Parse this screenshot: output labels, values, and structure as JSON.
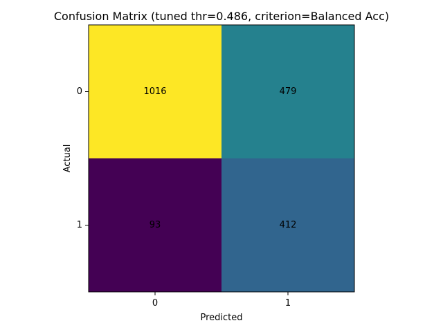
{
  "chart_data": {
    "type": "heatmap",
    "title": "Confusion Matrix (tuned thr=0.486, criterion=Balanced Acc)",
    "xlabel": "Predicted",
    "ylabel": "Actual",
    "x_categories": [
      "0",
      "1"
    ],
    "y_categories": [
      "0",
      "1"
    ],
    "values": [
      [
        1016,
        479
      ],
      [
        93,
        412
      ]
    ],
    "grid": false,
    "legend": "none",
    "colormap": "viridis",
    "cell_colors": [
      [
        "#fde725",
        "#25818e"
      ],
      [
        "#440154",
        "#31658e"
      ]
    ],
    "text_color": "#000000"
  }
}
